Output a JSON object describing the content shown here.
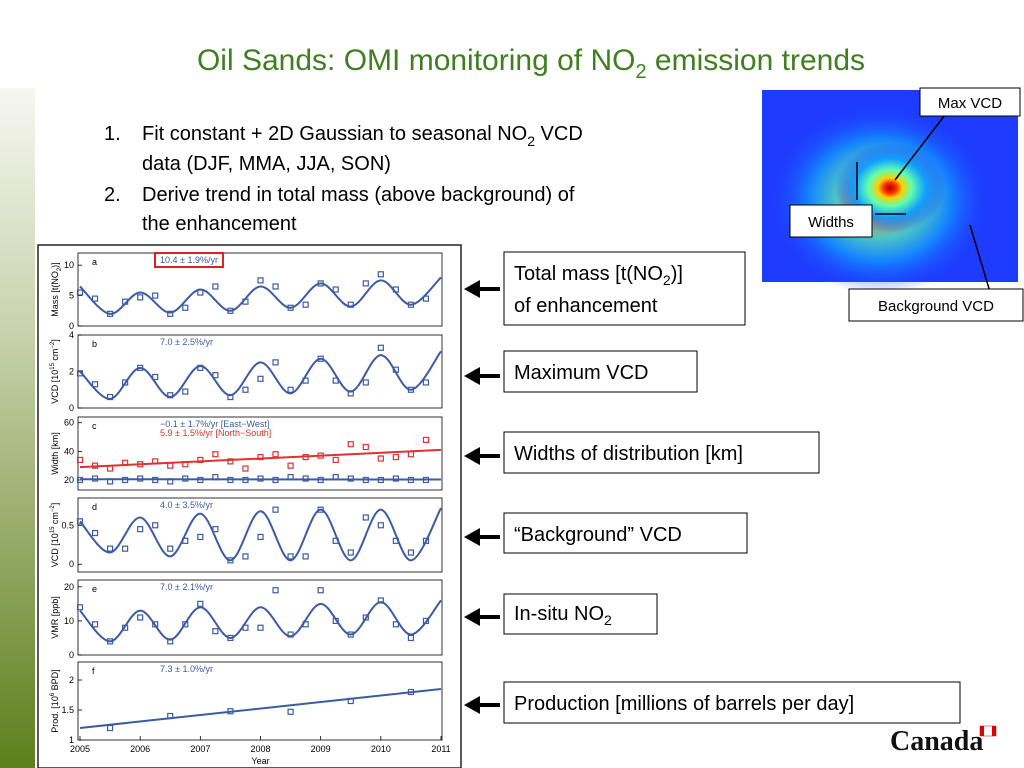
{
  "title": [
    "Oil Sands: OMI monitoring of NO",
    "2",
    " emission trends"
  ],
  "list": [
    {
      "number": "1.",
      "lines": [
        [
          "Fit constant + 2D Gaussian to seasonal NO",
          "2",
          " VCD"
        ],
        [
          "data (DJF, MMA, JJA, SON)"
        ]
      ]
    },
    {
      "number": "2.",
      "lines": [
        [
          "Derive trend in total mass (above background) of"
        ],
        [
          "the enhancement"
        ]
      ]
    }
  ],
  "figure_labels": {
    "max": "Max VCD",
    "widths": "Widths",
    "background": "Background VCD"
  },
  "callouts": [
    {
      "lines": [
        [
          "Total mass [t(NO",
          "2",
          ")]"
        ],
        [
          "of enhancement"
        ]
      ]
    },
    {
      "lines": [
        [
          "Maximum VCD"
        ]
      ]
    },
    {
      "lines": [
        [
          "Widths of distribution [km]"
        ]
      ]
    },
    {
      "lines": [
        [
          "“Background” VCD"
        ]
      ]
    },
    {
      "lines": [
        [
          "In-situ NO",
          "2"
        ]
      ]
    },
    {
      "lines": [
        [
          "Production [millions of barrels per day]"
        ]
      ]
    }
  ],
  "logo": "Canada",
  "chart_data": [
    {
      "type": "line",
      "label": "a",
      "ylabel": [
        "Mass [t(NO",
        "2",
        ")]"
      ],
      "ylabel_script": "sub",
      "annotations": [
        {
          "text": "10.4 ± 1.9%/yr",
          "color": "#3b5ba5",
          "box": "#e02020"
        }
      ],
      "xlim": [
        2005,
        2011
      ],
      "ylim": [
        0,
        12
      ],
      "yticks": [
        0,
        5,
        10
      ],
      "x": [
        2005,
        2005.25,
        2005.5,
        2005.75,
        2006,
        2006.25,
        2006.5,
        2006.75,
        2007,
        2007.25,
        2007.5,
        2007.75,
        2008,
        2008.25,
        2008.5,
        2008.75,
        2009,
        2009.25,
        2009.5,
        2009.75,
        2010,
        2010.25,
        2010.5,
        2010.75
      ],
      "series": [
        {
          "color": "#3b5ba5",
          "values": [
            5.5,
            4.5,
            2,
            4,
            4.7,
            5,
            2,
            3,
            5.5,
            6.5,
            2.5,
            4,
            7.5,
            6.5,
            3,
            3.5,
            7,
            6,
            3.5,
            7,
            8.5,
            6,
            3.5,
            4.5
          ]
        }
      ],
      "fits": [
        {
          "color": "#3b5ba5",
          "smooth": true,
          "x": [
            2005,
            2005.5,
            2006,
            2006.5,
            2007,
            2007.5,
            2008,
            2008.5,
            2009,
            2009.5,
            2010,
            2010.5,
            2011
          ],
          "values": [
            6.5,
            2,
            5.5,
            2.2,
            6,
            2.5,
            6.5,
            3,
            7,
            3.2,
            7.5,
            3.5,
            8
          ]
        }
      ]
    },
    {
      "type": "line",
      "label": "b",
      "ylabel": [
        "VCD [10",
        "15",
        " cm",
        "−2",
        "]"
      ],
      "ylabel_script": "sup",
      "annotations": [
        {
          "text": "7.0 ± 2.5%/yr",
          "color": "#3b5ba5"
        }
      ],
      "xlim": [
        2005,
        2011
      ],
      "ylim": [
        0,
        4
      ],
      "yticks": [
        0,
        2,
        4
      ],
      "x": [
        2005,
        2005.25,
        2005.5,
        2005.75,
        2006,
        2006.25,
        2006.5,
        2006.75,
        2007,
        2007.25,
        2007.5,
        2007.75,
        2008,
        2008.25,
        2008.5,
        2008.75,
        2009,
        2009.25,
        2009.5,
        2009.75,
        2010,
        2010.25,
        2010.5,
        2010.75
      ],
      "series": [
        {
          "color": "#3b5ba5",
          "values": [
            1.9,
            1.3,
            0.6,
            1.4,
            2.2,
            1.7,
            0.7,
            0.9,
            2.2,
            1.8,
            0.6,
            1.0,
            1.6,
            2.5,
            1.0,
            1.5,
            2.7,
            1.5,
            0.8,
            1.4,
            3.3,
            2.1,
            1.0,
            1.4
          ]
        }
      ],
      "fits": [
        {
          "color": "#3b5ba5",
          "smooth": true,
          "x": [
            2005,
            2005.5,
            2006,
            2006.5,
            2007,
            2007.5,
            2008,
            2008.5,
            2009,
            2009.5,
            2010,
            2010.5,
            2011
          ],
          "values": [
            2,
            0.5,
            2.2,
            0.6,
            2.3,
            0.7,
            2.5,
            0.8,
            2.7,
            0.9,
            2.9,
            1.0,
            3.1
          ]
        }
      ]
    },
    {
      "type": "line",
      "label": "c",
      "ylabel": [
        "Width [km]"
      ],
      "annotations": [
        {
          "text": "−0.1 ± 1.7%/yr [East−West]",
          "color": "#3b5ba5"
        },
        {
          "text": "5.9 ± 1.5%/yr [North−South]",
          "color": "#e03030"
        }
      ],
      "xlim": [
        2005,
        2011
      ],
      "ylim": [
        13,
        64
      ],
      "yticks": [
        20,
        40,
        60
      ],
      "x": [
        2005,
        2005.25,
        2005.5,
        2005.75,
        2006,
        2006.25,
        2006.5,
        2006.75,
        2007,
        2007.25,
        2007.5,
        2007.75,
        2008,
        2008.25,
        2008.5,
        2008.75,
        2009,
        2009.25,
        2009.5,
        2009.75,
        2010,
        2010.25,
        2010.5,
        2010.75
      ],
      "series": [
        {
          "color": "#3b5ba5",
          "values": [
            20,
            21,
            19,
            20,
            21,
            20,
            19,
            21,
            20,
            22,
            20,
            20,
            21,
            20,
            22,
            21,
            20,
            22,
            21,
            20,
            20,
            21,
            20,
            20
          ]
        },
        {
          "color": "#e03030",
          "values": [
            34,
            30,
            28,
            32,
            31,
            33,
            30,
            31,
            34,
            38,
            33,
            28,
            36,
            38,
            30,
            36,
            37,
            34,
            45,
            43,
            35,
            36,
            38,
            48
          ]
        }
      ],
      "fits": [
        {
          "color": "#3b5ba5",
          "x": [
            2005,
            2011
          ],
          "values": [
            20.5,
            20.3
          ]
        },
        {
          "color": "#e03030",
          "x": [
            2005,
            2011
          ],
          "values": [
            29,
            41
          ]
        }
      ]
    },
    {
      "type": "line",
      "label": "d",
      "ylabel": [
        "VCD [10",
        "15",
        " cm",
        "−2",
        "]"
      ],
      "ylabel_script": "sup",
      "annotations": [
        {
          "text": "4.0 ± 3.5%/yr",
          "color": "#3b5ba5"
        }
      ],
      "xlim": [
        2005,
        2011
      ],
      "ylim": [
        -0.1,
        0.85
      ],
      "yticks": [
        0,
        0.5
      ],
      "x": [
        2005,
        2005.25,
        2005.5,
        2005.75,
        2006,
        2006.25,
        2006.5,
        2006.75,
        2007,
        2007.25,
        2007.5,
        2007.75,
        2008,
        2008.25,
        2008.5,
        2008.75,
        2009,
        2009.25,
        2009.5,
        2009.75,
        2010,
        2010.25,
        2010.5,
        2010.75
      ],
      "series": [
        {
          "color": "#3b5ba5",
          "values": [
            0.55,
            0.4,
            0.2,
            0.2,
            0.45,
            0.5,
            0.2,
            0.3,
            0.35,
            0.45,
            0.05,
            0.1,
            0.35,
            0.7,
            0.1,
            0.1,
            0.7,
            0.3,
            0.15,
            0.6,
            0.5,
            0.3,
            0.15,
            0.3
          ]
        }
      ],
      "fits": [
        {
          "color": "#3b5ba5",
          "smooth": true,
          "x": [
            2005,
            2005.5,
            2006,
            2006.5,
            2007,
            2007.5,
            2008,
            2008.5,
            2009,
            2009.5,
            2010,
            2010.5,
            2011
          ],
          "values": [
            0.55,
            0.15,
            0.6,
            0.1,
            0.65,
            0.05,
            0.68,
            0.05,
            0.7,
            0.05,
            0.7,
            0.05,
            0.72
          ]
        }
      ]
    },
    {
      "type": "line",
      "label": "e",
      "ylabel": [
        "VMR [ppb]"
      ],
      "annotations": [
        {
          "text": "7.0 ± 2.1%/yr",
          "color": "#3b5ba5"
        }
      ],
      "xlim": [
        2005,
        2011
      ],
      "ylim": [
        0,
        22
      ],
      "yticks": [
        0,
        10,
        20
      ],
      "x": [
        2005,
        2005.25,
        2005.5,
        2005.75,
        2006,
        2006.25,
        2006.5,
        2006.75,
        2007,
        2007.25,
        2007.5,
        2007.75,
        2008,
        2008.25,
        2008.5,
        2008.75,
        2009,
        2009.25,
        2009.5,
        2009.75,
        2010,
        2010.25,
        2010.5,
        2010.75
      ],
      "series": [
        {
          "color": "#3b5ba5",
          "values": [
            14,
            9,
            4,
            8,
            11,
            9,
            4,
            9,
            15,
            7,
            5,
            8,
            8,
            19,
            6,
            9,
            19,
            10,
            6,
            11,
            16,
            9,
            5,
            10
          ]
        }
      ],
      "fits": [
        {
          "color": "#3b5ba5",
          "smooth": true,
          "x": [
            2005,
            2005.5,
            2006,
            2006.5,
            2007,
            2007.5,
            2008,
            2008.5,
            2009,
            2009.5,
            2010,
            2010.5,
            2011
          ],
          "values": [
            13,
            4,
            13,
            4.5,
            14,
            5,
            14,
            5.5,
            15,
            6,
            15.5,
            6,
            16
          ]
        }
      ]
    },
    {
      "type": "line",
      "label": "f",
      "ylabel": [
        "Prod. [10",
        "6",
        " BPD]"
      ],
      "ylabel_script": "sup",
      "annotations": [
        {
          "text": "7.3 ± 1.0%/yr",
          "color": "#3b5ba5"
        }
      ],
      "xlim": [
        2005,
        2011
      ],
      "ylim": [
        1,
        2.3
      ],
      "yticks": [
        1,
        1.5,
        2
      ],
      "xticks": [
        2005,
        2006,
        2007,
        2008,
        2009,
        2010,
        2011
      ],
      "xlabel": "Year",
      "x": [
        2005.5,
        2006.5,
        2007.5,
        2008.5,
        2009.5,
        2010.5
      ],
      "series": [
        {
          "color": "#3b5ba5",
          "values": [
            1.2,
            1.4,
            1.48,
            1.47,
            1.65,
            1.8
          ]
        }
      ],
      "fits": [
        {
          "color": "#3b5ba5",
          "x": [
            2005,
            2011
          ],
          "values": [
            1.2,
            1.85
          ]
        }
      ]
    }
  ]
}
